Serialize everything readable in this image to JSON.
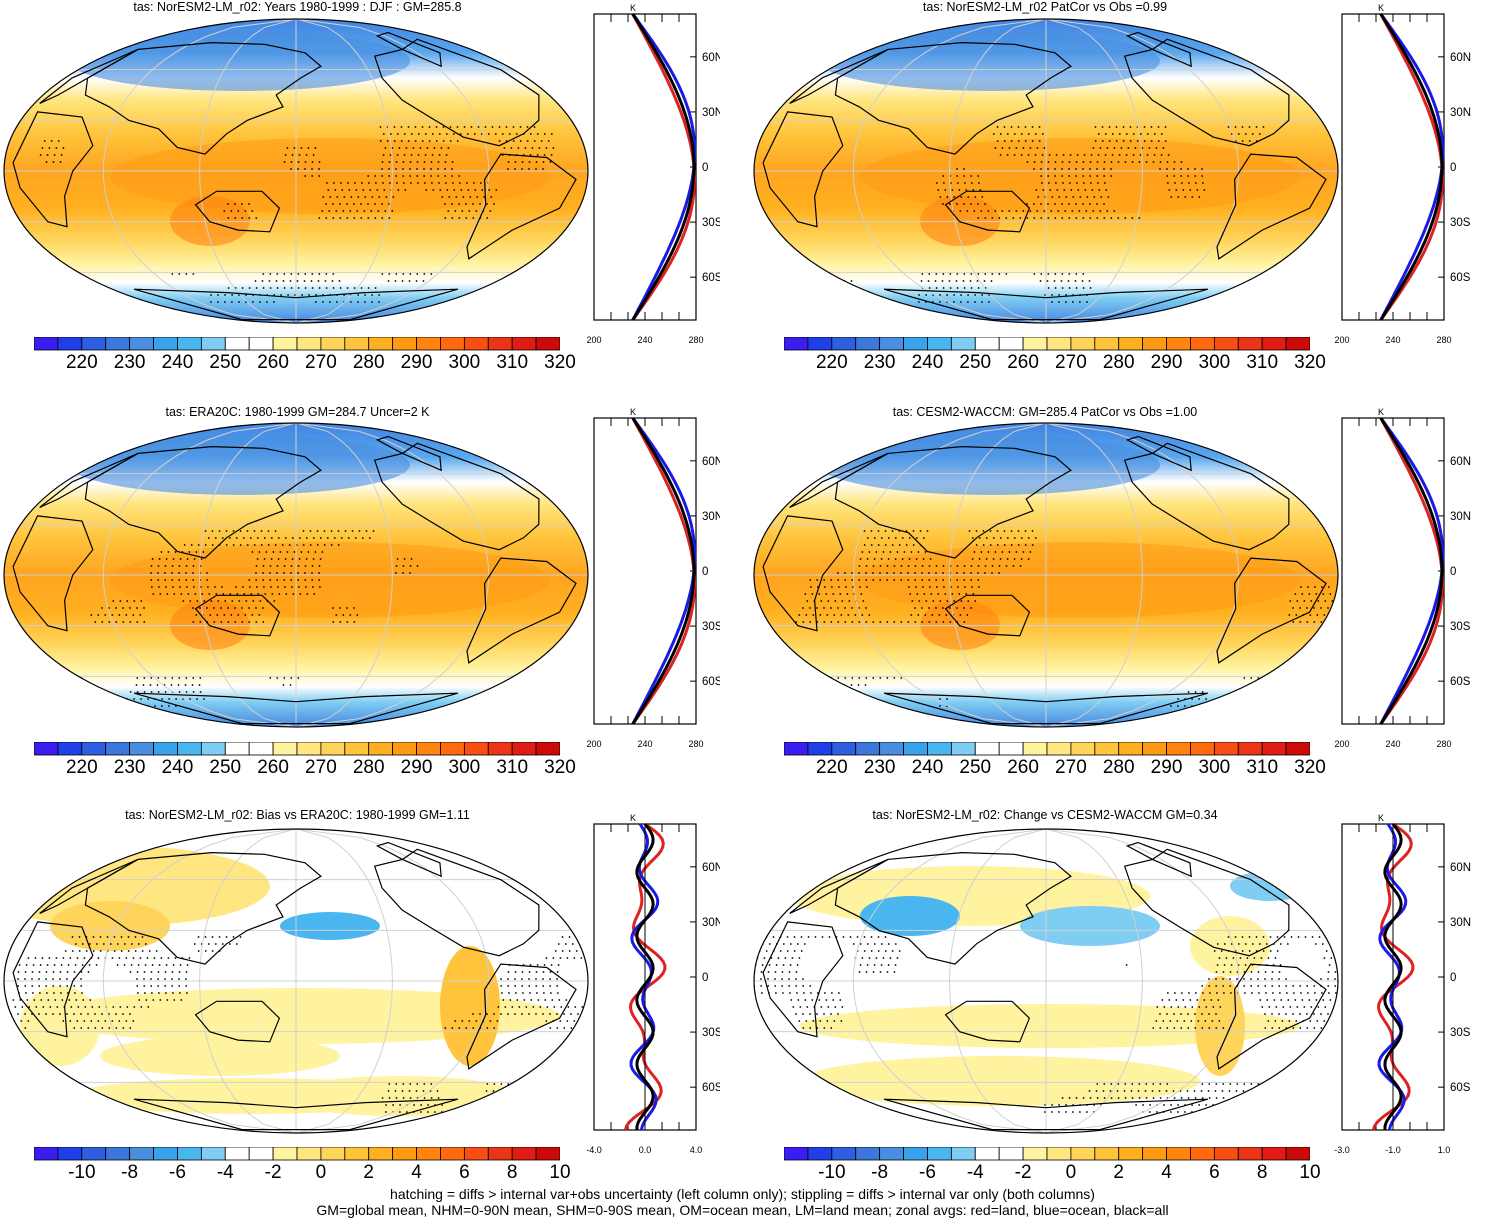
{
  "panels": [
    {
      "id": "p1",
      "title": "tas: NorESM2-LM_r02: Years 1980-1999 : DJF : GM=285.8",
      "type": "abs",
      "zonal": {
        "unit": "K",
        "xticks": [
          "200",
          "240",
          "280"
        ],
        "yticks": [
          "60N",
          "30N",
          "0",
          "30S",
          "60S"
        ]
      }
    },
    {
      "id": "p2",
      "title": "tas: NorESM2-LM_r02 PatCor vs Obs =0.99",
      "type": "abs",
      "zonal": {
        "unit": "K",
        "xticks": [
          "200",
          "240",
          "280"
        ],
        "yticks": [
          "60N",
          "30N",
          "0",
          "30S",
          "60S"
        ]
      }
    },
    {
      "id": "p3",
      "title": "tas: ERA20C: 1980-1999 GM=284.7 Uncer=2 K",
      "type": "abs",
      "zonal": {
        "unit": "K",
        "xticks": [
          "200",
          "240",
          "280"
        ],
        "yticks": [
          "60N",
          "30N",
          "0",
          "30S",
          "60S"
        ]
      }
    },
    {
      "id": "p4",
      "title": "tas: CESM2-WACCM: GM=285.4 PatCor vs Obs =1.00",
      "type": "abs",
      "zonal": {
        "unit": "K",
        "xticks": [
          "200",
          "240",
          "280"
        ],
        "yticks": [
          "60N",
          "30N",
          "0",
          "30S",
          "60S"
        ]
      }
    },
    {
      "id": "p5",
      "title": "tas: NorESM2-LM_r02: Bias vs ERA20C: 1980-1999 GM=1.11",
      "type": "diff",
      "zonal": {
        "unit": "K",
        "xticks": [
          "-4.0",
          "0.0",
          "4.0"
        ],
        "yticks": [
          "60N",
          "30N",
          "0",
          "30S",
          "60S"
        ]
      }
    },
    {
      "id": "p6",
      "title": "tas: NorESM2-LM_r02: Change vs CESM2-WACCM GM=0.34",
      "type": "diff",
      "zonal": {
        "unit": "K",
        "xticks": [
          "-3.0",
          "-1.0",
          "1.0"
        ],
        "yticks": [
          "60N",
          "30N",
          "0",
          "30S",
          "60S"
        ]
      }
    }
  ],
  "colorbars": {
    "abs": {
      "labels": [
        "220",
        "230",
        "240",
        "250",
        "260",
        "270",
        "280",
        "290",
        "300",
        "310",
        "320"
      ],
      "colors": [
        "#3a1df0",
        "#1f3fe8",
        "#2d5fe0",
        "#3c78dc",
        "#4a8ee0",
        "#3aa2ea",
        "#49b6f0",
        "#7fcdf2",
        "#ffffff",
        "#ffffff",
        "#fff3a0",
        "#ffe680",
        "#ffd45a",
        "#ffc43c",
        "#ffb020",
        "#ff9a14",
        "#ff8410",
        "#ff6a10",
        "#f74e14",
        "#ec3416",
        "#e01c14",
        "#cc0a0a"
      ]
    },
    "diff": {
      "labels": [
        "-10",
        "-8",
        "-6",
        "-4",
        "-2",
        "0",
        "2",
        "4",
        "6",
        "8",
        "10"
      ],
      "colors": [
        "#3a1df0",
        "#1f3fe8",
        "#2d5fe0",
        "#3c78dc",
        "#4a8ee0",
        "#3aa2ea",
        "#49b6f0",
        "#7fcdf2",
        "#ffffff",
        "#ffffff",
        "#fff3a0",
        "#ffe680",
        "#ffd45a",
        "#ffc43c",
        "#ffb020",
        "#ff9a14",
        "#ff8410",
        "#ff6a10",
        "#f74e14",
        "#ec3416",
        "#e01c14",
        "#cc0a0a"
      ]
    }
  },
  "colors": {
    "land": "#dd2222",
    "ocean": "#1a1ae6",
    "all": "#000000",
    "grid": "#d0d0d0",
    "coast": "#000000"
  },
  "footer": {
    "line1": "hatching = diffs > internal var+obs uncertainty (left column only); stippling = diffs > internal var only (both columns)",
    "line2": "GM=global mean, NHM=0-90N mean, SHM=0-90S mean, OM=ocean mean, LM=land mean; zonal avgs: red=land, blue=ocean, black=all"
  }
}
